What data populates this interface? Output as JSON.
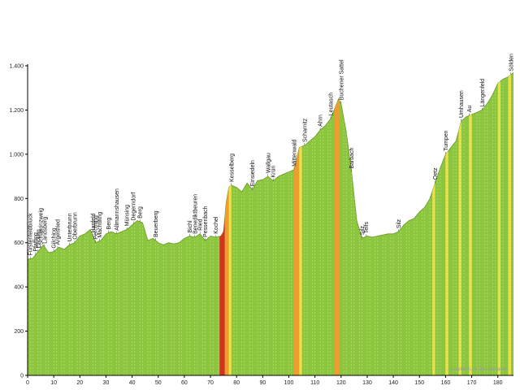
{
  "watermark": "quaeldich.de Tourenplaner",
  "chart_data": {
    "type": "area",
    "title": "",
    "xlabel": "",
    "ylabel": "",
    "xlim": [
      0,
      186
    ],
    "ylim": [
      0,
      1400
    ],
    "x_ticks": [
      0,
      10,
      20,
      30,
      40,
      50,
      60,
      70,
      80,
      90,
      100,
      110,
      120,
      130,
      140,
      150,
      160,
      170,
      180
    ],
    "y_ticks": [
      0,
      200,
      400,
      600,
      800,
      1000,
      1200,
      1400
    ],
    "y_tick_labels": [
      "0",
      "200",
      "400",
      "600",
      "800",
      "1.000",
      "1.200",
      "1.400"
    ],
    "grid": false,
    "colors": {
      "fill": "#8cc63f",
      "line": "#6a9a2a",
      "stripe_light": "#d8ee9a",
      "climb_easy": "#f2e04a",
      "climb_medium": "#f29a2e",
      "climb_hard": "#d8291c",
      "axis": "#000000"
    },
    "series": [
      {
        "x": [
          0,
          2,
          4,
          6,
          8,
          10,
          12,
          14,
          16,
          18,
          20,
          22,
          24,
          26,
          28,
          30,
          32,
          34,
          36,
          38,
          40,
          42,
          44,
          46,
          48,
          50,
          52,
          54,
          56,
          58,
          60,
          62,
          64,
          66,
          68,
          70,
          72,
          74,
          75,
          76,
          77,
          78,
          80,
          82,
          84,
          86,
          88,
          90,
          92,
          94,
          96,
          98,
          100,
          102,
          104,
          106,
          108,
          110,
          112,
          114,
          116,
          118,
          119,
          120,
          122,
          124,
          126,
          128,
          130,
          132,
          134,
          136,
          138,
          140,
          142,
          144,
          146,
          148,
          150,
          152,
          154,
          156,
          158,
          160,
          162,
          164,
          166,
          168,
          170,
          172,
          174,
          176,
          178,
          180,
          182,
          184,
          186
        ],
        "y": [
          525,
          530,
          560,
          590,
          555,
          560,
          580,
          570,
          590,
          600,
          630,
          640,
          660,
          600,
          610,
          640,
          650,
          640,
          650,
          660,
          680,
          700,
          690,
          610,
          620,
          600,
          590,
          600,
          595,
          600,
          620,
          630,
          625,
          640,
          610,
          630,
          625,
          630,
          650,
          780,
          850,
          860,
          850,
          830,
          870,
          840,
          880,
          885,
          900,
          880,
          900,
          910,
          920,
          930,
          1030,
          1040,
          1060,
          1080,
          1110,
          1130,
          1160,
          1220,
          1250,
          1230,
          1100,
          920,
          700,
          620,
          630,
          625,
          630,
          635,
          640,
          640,
          650,
          680,
          700,
          710,
          740,
          760,
          800,
          870,
          940,
          1000,
          1030,
          1060,
          1150,
          1170,
          1180,
          1190,
          1200,
          1230,
          1270,
          1320,
          1340,
          1350,
          1370
        ]
      }
    ],
    "climb_segments": [
      {
        "from": 73.5,
        "to": 75.5,
        "level": "hard"
      },
      {
        "from": 75.5,
        "to": 77,
        "level": "medium"
      },
      {
        "from": 77,
        "to": 78,
        "level": "easy"
      },
      {
        "from": 102,
        "to": 104,
        "level": "medium"
      },
      {
        "from": 104,
        "to": 105,
        "level": "easy"
      },
      {
        "from": 117.5,
        "to": 119.5,
        "level": "medium"
      },
      {
        "from": 155,
        "to": 156,
        "level": "easy"
      },
      {
        "from": 160,
        "to": 161,
        "level": "easy"
      },
      {
        "from": 165,
        "to": 166,
        "level": "easy"
      },
      {
        "from": 169,
        "to": 170,
        "level": "easy"
      },
      {
        "from": 180,
        "to": 181,
        "level": "easy"
      },
      {
        "from": 184,
        "to": 185,
        "level": "easy"
      }
    ],
    "annotations": [
      {
        "x": 1,
        "label": "Fürstenfeldbruck"
      },
      {
        "x": 3,
        "label": "Pfaffing"
      },
      {
        "x": 4,
        "label": "Eholing"
      },
      {
        "x": 5,
        "label": "Schaurinzweig"
      },
      {
        "x": 6.5,
        "label": "Landsberg"
      },
      {
        "x": 10,
        "label": "Gilching"
      },
      {
        "x": 11.5,
        "label": "Argelsried"
      },
      {
        "x": 16,
        "label": "Unterbrunn"
      },
      {
        "x": 18,
        "label": "Oberbrunn"
      },
      {
        "x": 25,
        "label": "Hanfeld"
      },
      {
        "x": 26,
        "label": "Perchting"
      },
      {
        "x": 27.5,
        "label": "Machtlfing"
      },
      {
        "x": 31,
        "label": "Berg"
      },
      {
        "x": 34,
        "label": "Allmannshausen"
      },
      {
        "x": 38,
        "label": "Münsing"
      },
      {
        "x": 40.5,
        "label": "Degerndorf"
      },
      {
        "x": 43,
        "label": "Berg"
      },
      {
        "x": 49,
        "label": "Beuerberg"
      },
      {
        "x": 62,
        "label": "Bichl"
      },
      {
        "x": 64,
        "label": "Benediktbeuren"
      },
      {
        "x": 66,
        "label": "Ried"
      },
      {
        "x": 68,
        "label": "Pessenbach"
      },
      {
        "x": 72,
        "label": "Kochel"
      },
      {
        "x": 78,
        "label": "Kesselberg"
      },
      {
        "x": 86,
        "label": "Einsiedeln"
      },
      {
        "x": 92,
        "label": "Wallgau"
      },
      {
        "x": 94,
        "label": "Krün"
      },
      {
        "x": 102,
        "label": "Mittenwald"
      },
      {
        "x": 106,
        "label": "Scharnitz"
      },
      {
        "x": 112,
        "label": "Ahrn"
      },
      {
        "x": 116,
        "label": "Leutasch"
      },
      {
        "x": 120,
        "label": "Buchener Sattel"
      },
      {
        "x": 124,
        "label": "Barbach"
      },
      {
        "x": 128,
        "label": "Silz"
      },
      {
        "x": 129.5,
        "label": "Telfs"
      },
      {
        "x": 142,
        "label": "Silz"
      },
      {
        "x": 156,
        "label": "Oetz"
      },
      {
        "x": 160,
        "label": "Tumpen"
      },
      {
        "x": 166,
        "label": "Umhausen"
      },
      {
        "x": 169,
        "label": "Au"
      },
      {
        "x": 174,
        "label": "Längenfeld"
      },
      {
        "x": 185,
        "label": "Sölden"
      }
    ]
  }
}
